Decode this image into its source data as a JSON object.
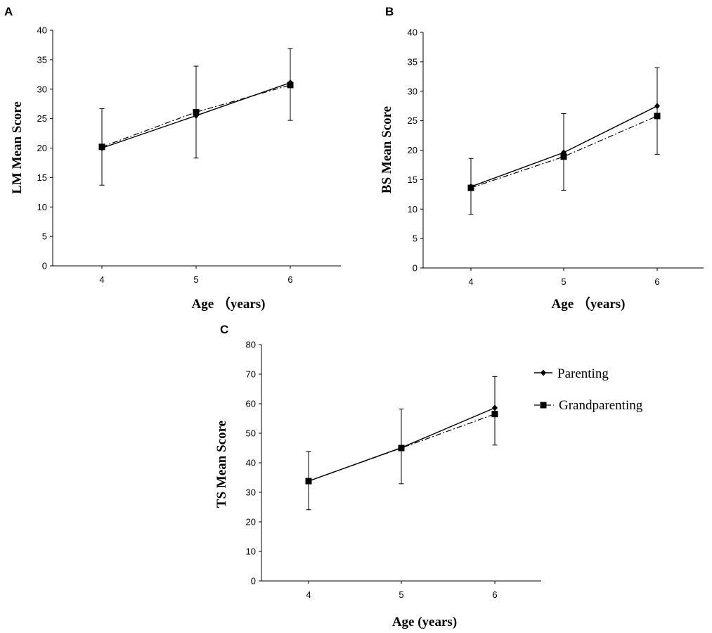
{
  "legend": [
    {
      "name": "Parenting",
      "marker": "diamond",
      "line": "solid"
    },
    {
      "name": "Grandparenting",
      "marker": "square",
      "line": "dash-dot"
    }
  ],
  "chart_data": [
    {
      "panel": "A",
      "type": "line",
      "categories": [
        "4",
        "5",
        "6"
      ],
      "xlabel": "Age （years)",
      "ylabel": "LM Mean Score",
      "ylim": [
        0,
        40
      ],
      "yticks": [
        "0",
        "5",
        "10",
        "15",
        "20",
        "25",
        "30",
        "35",
        "40"
      ],
      "series": [
        {
          "name": "Parenting",
          "values": [
            20.0,
            25.5,
            31.1
          ],
          "error_low": [
            13.7,
            18.3,
            24.7
          ],
          "error_high": [
            26.7,
            33.9,
            36.9
          ]
        },
        {
          "name": "Grandparenting",
          "values": [
            20.2,
            26.1,
            30.7
          ]
        }
      ]
    },
    {
      "panel": "B",
      "type": "line",
      "categories": [
        "4",
        "5",
        "6"
      ],
      "xlabel": "Age （years)",
      "ylabel": "BS Mean Score",
      "ylim": [
        0,
        40
      ],
      "yticks": [
        "0",
        "5",
        "10",
        "15",
        "20",
        "25",
        "30",
        "35",
        "40"
      ],
      "series": [
        {
          "name": "Parenting",
          "values": [
            13.8,
            19.6,
            27.5
          ],
          "error_low": [
            9.1,
            13.2,
            19.3
          ],
          "error_high": [
            18.6,
            26.2,
            34.0
          ]
        },
        {
          "name": "Grandparenting",
          "values": [
            13.6,
            18.9,
            25.8
          ]
        }
      ]
    },
    {
      "panel": "C",
      "type": "line",
      "categories": [
        "4",
        "5",
        "6"
      ],
      "xlabel": "Age (years)",
      "ylabel": "TS Mean Score",
      "ylim": [
        0,
        80
      ],
      "yticks": [
        "0",
        "10",
        "20",
        "30",
        "40",
        "50",
        "60",
        "70",
        "80"
      ],
      "series": [
        {
          "name": "Parenting",
          "values": [
            33.8,
            45.1,
            58.6
          ],
          "error_low": [
            24.1,
            32.9,
            46.0
          ],
          "error_high": [
            43.9,
            58.2,
            69.2
          ]
        },
        {
          "name": "Grandparenting",
          "values": [
            33.8,
            45.0,
            56.5
          ]
        }
      ]
    }
  ]
}
